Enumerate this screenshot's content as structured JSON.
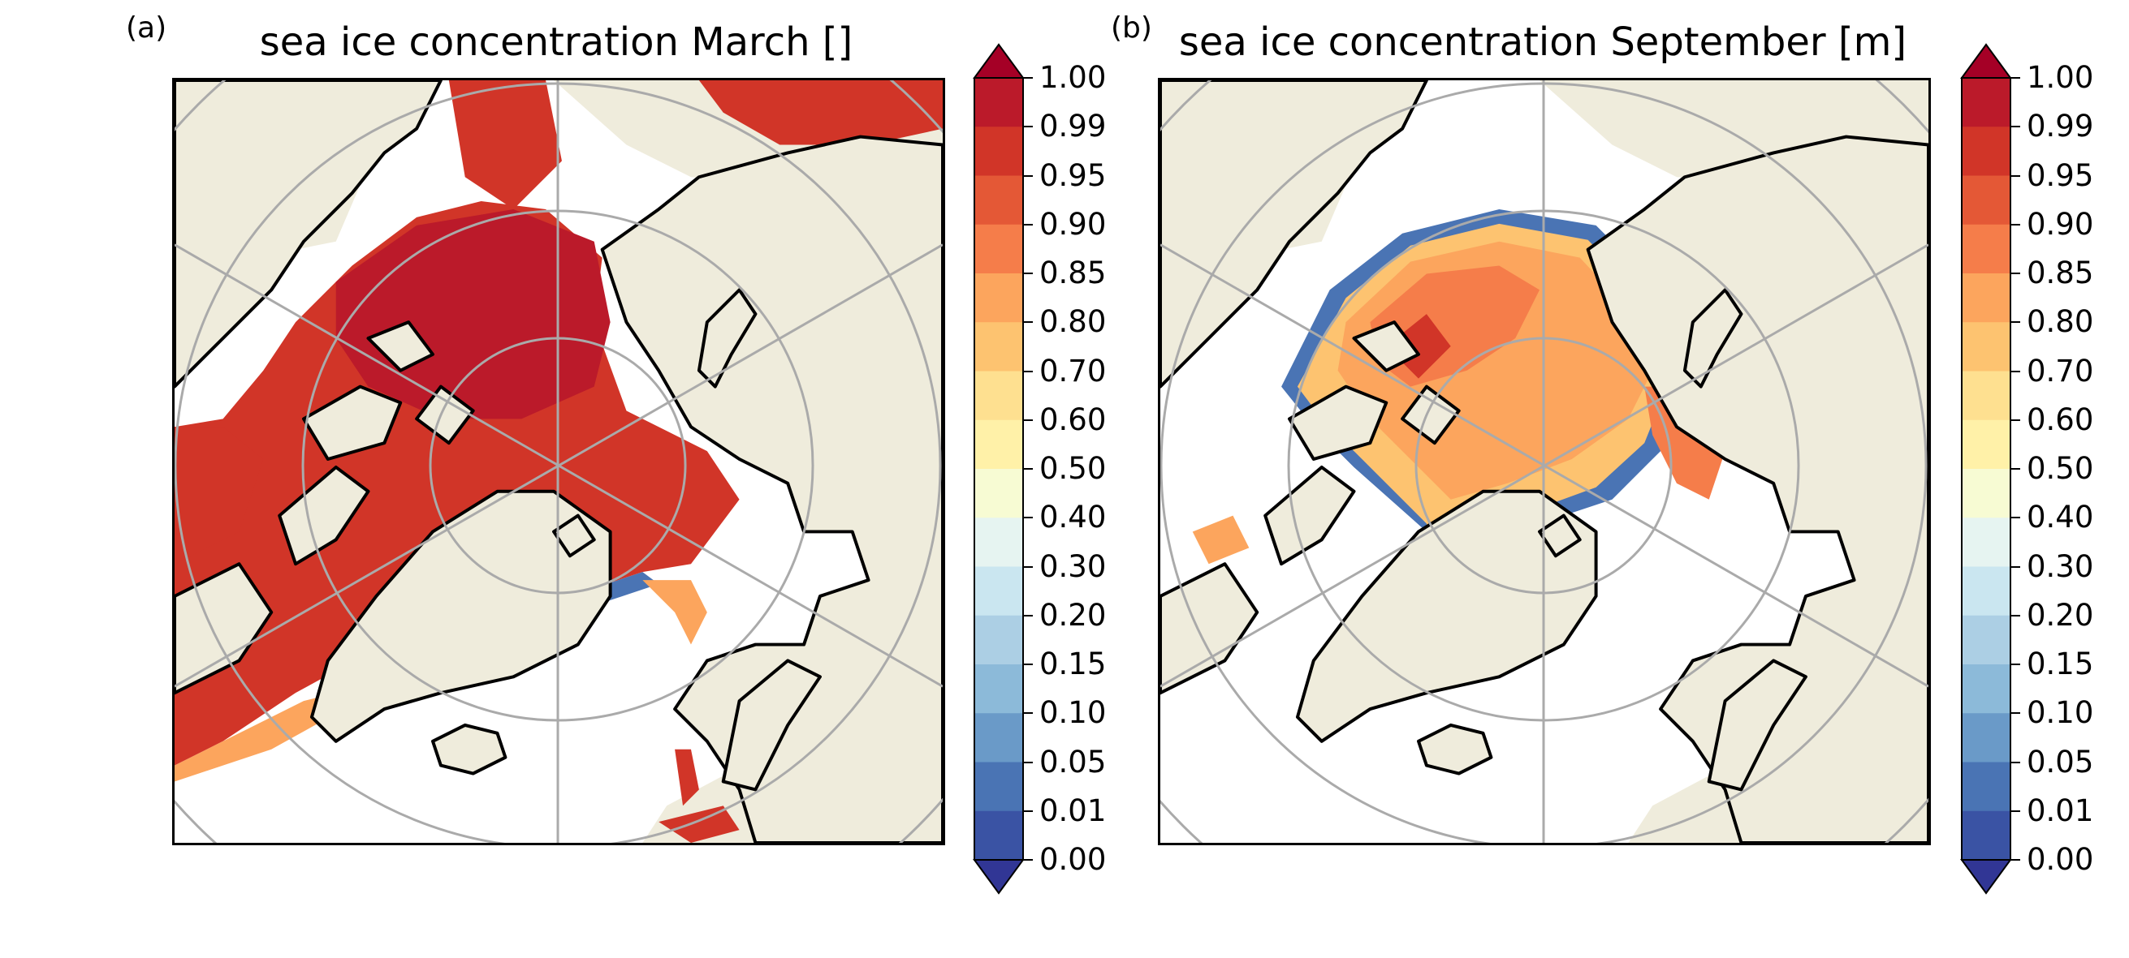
{
  "panels": [
    {
      "letter": "(a)",
      "title": "sea ice concentration March []",
      "map_icon": "arctic-polar-stereographic-map",
      "colorbar_ticks": [
        "1.00",
        "0.99",
        "0.95",
        "0.90",
        "0.85",
        "0.80",
        "0.70",
        "0.60",
        "0.50",
        "0.40",
        "0.30",
        "0.20",
        "0.15",
        "0.10",
        "0.05",
        "0.01",
        "0.00"
      ]
    },
    {
      "letter": "(b)",
      "title": "sea ice concentration September [m]",
      "map_icon": "arctic-polar-stereographic-map",
      "colorbar_ticks": [
        "1.00",
        "0.99",
        "0.95",
        "0.90",
        "0.85",
        "0.80",
        "0.70",
        "0.60",
        "0.50",
        "0.40",
        "0.30",
        "0.20",
        "0.15",
        "0.10",
        "0.05",
        "0.01",
        "0.00"
      ]
    }
  ],
  "colormap": {
    "name": "RdYlBu_r",
    "over_color": "#a50026",
    "under_color": "#313695",
    "bands": [
      "#3a53a4",
      "#4a74b4",
      "#6a9ac8",
      "#8cbad9",
      "#accfe4",
      "#cae6f0",
      "#e6f4f1",
      "#f7fbd3",
      "#fff1a8",
      "#fee090",
      "#fdc370",
      "#fca55d",
      "#f57d4a",
      "#e45836",
      "#d13528",
      "#bb1a2a"
    ]
  },
  "colors": {
    "land": "#efecdc",
    "ocean": "#ffffff",
    "grid": "#aaaaaa",
    "coast": "#000000"
  }
}
